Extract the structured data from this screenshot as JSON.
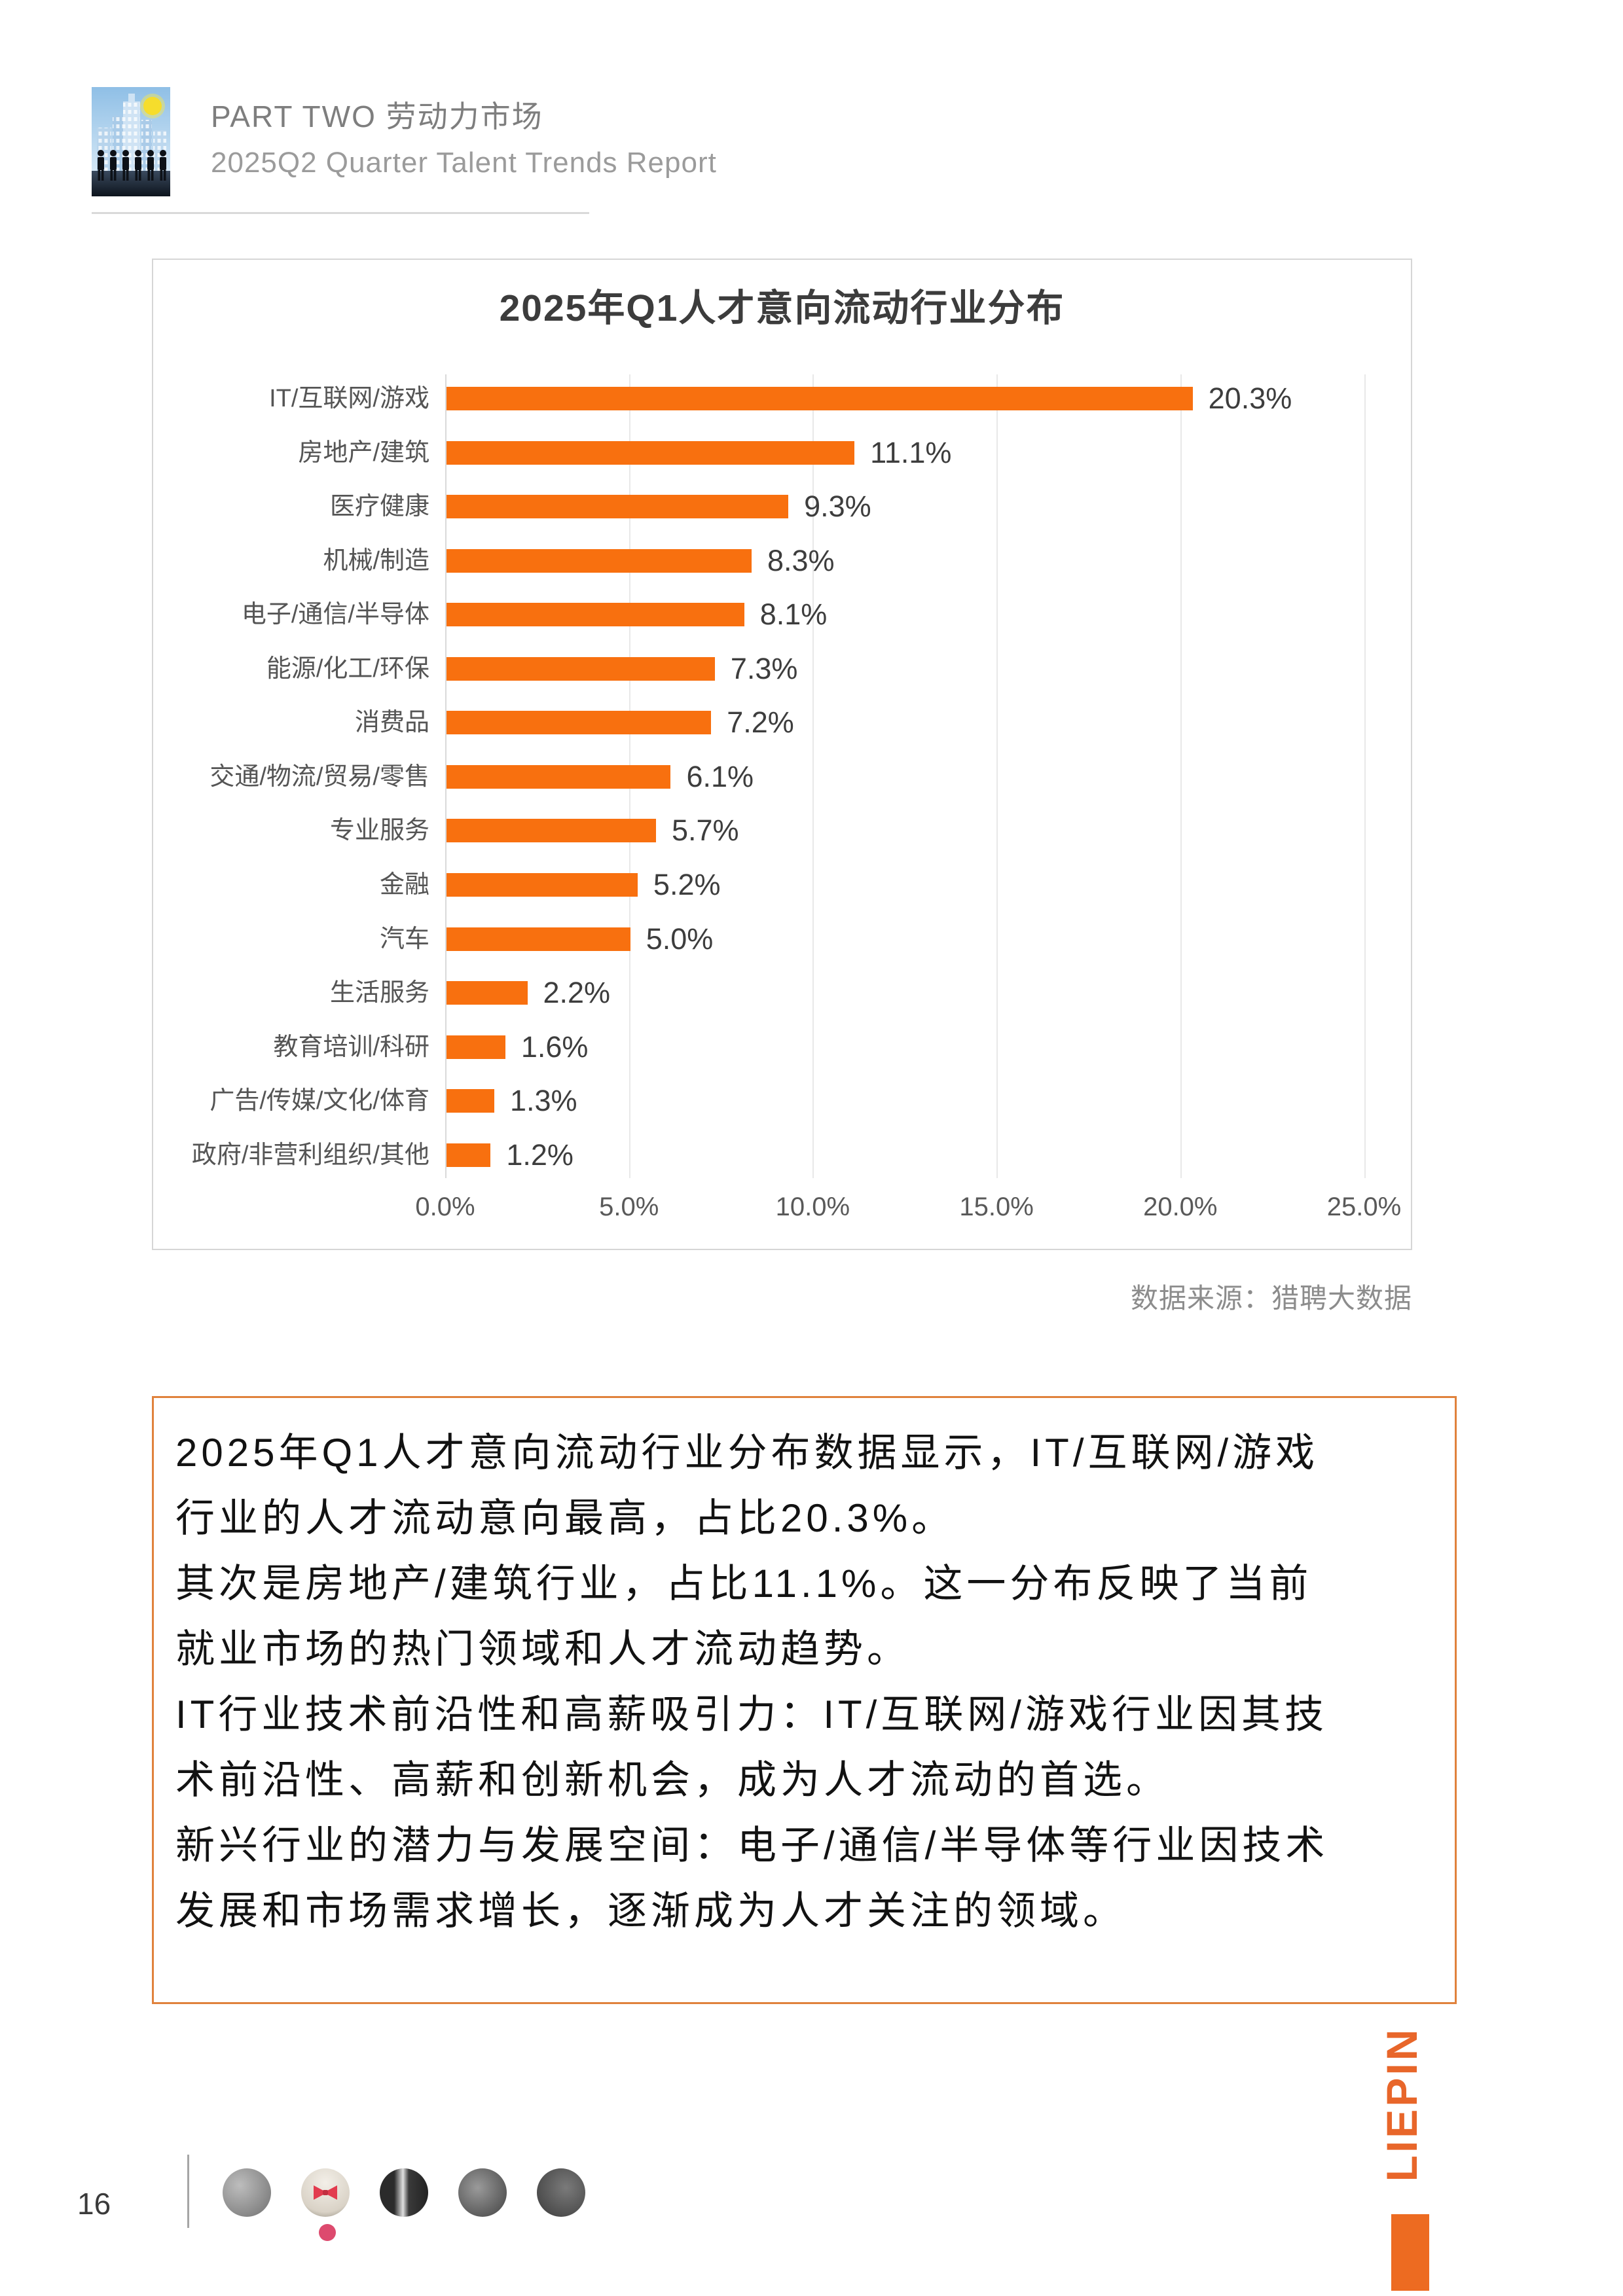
{
  "header": {
    "part_label": "PART TWO 劳动力市场",
    "report_title": "2025Q2 Quarter Talent Trends Report"
  },
  "chart": {
    "title": "2025年Q1人才意向流动行业分布",
    "source_note": "数据来源：猎聘大数据"
  },
  "chart_data": {
    "type": "bar",
    "orientation": "horizontal",
    "title": "2025年Q1人才意向流动行业分布",
    "categories": [
      "IT/互联网/游戏",
      "房地产/建筑",
      "医疗健康",
      "机械/制造",
      "电子/通信/半导体",
      "能源/化工/环保",
      "消费品",
      "交通/物流/贸易/零售",
      "专业服务",
      "金融",
      "汽车",
      "生活服务",
      "教育培训/科研",
      "广告/传媒/文化/体育",
      "政府/非营利组织/其他"
    ],
    "values": [
      20.3,
      11.1,
      9.3,
      8.3,
      8.1,
      7.3,
      7.2,
      6.1,
      5.7,
      5.2,
      5.0,
      2.2,
      1.6,
      1.3,
      1.2
    ],
    "value_labels": [
      "20.3%",
      "11.1%",
      "9.3%",
      "8.3%",
      "8.1%",
      "7.3%",
      "7.2%",
      "6.1%",
      "5.7%",
      "5.2%",
      "5.0%",
      "2.2%",
      "1.6%",
      "1.3%",
      "1.2%"
    ],
    "x_ticks": [
      {
        "value": 0,
        "label": "0.0%"
      },
      {
        "value": 5,
        "label": "5.0%"
      },
      {
        "value": 10,
        "label": "10.0%"
      },
      {
        "value": 15,
        "label": "15.0%"
      },
      {
        "value": 20,
        "label": "20.0%"
      },
      {
        "value": 25,
        "label": "25.0%"
      }
    ],
    "xlim": [
      0,
      25
    ],
    "grid": true,
    "legend_position": "none",
    "bar_color": "#f8700f"
  },
  "summary": {
    "paragraphs": [
      "2025年Q1人才意向流动行业分布数据显示，IT/互联网/游戏\n行业的人才流动意向最高，占比20.3%。",
      "其次是房地产/建筑行业，占比11.1%。这一分布反映了当前\n就业市场的热门领域和人才流动趋势。",
      "IT行业技术前沿性和高薪吸引力：IT/互联网/游戏行业因其技\n术前沿性、高薪和创新机会，成为人才流动的首选。",
      "新兴行业的潜力与发展空间：电子/通信/半导体等行业因技术\n发展和市场需求增长，逐渐成为人才关注的领域。"
    ]
  },
  "footer": {
    "page_number": "16",
    "brand_text": "LIEPIN"
  },
  "colors": {
    "bar_orange": "#f8700f",
    "summary_border_orange": "#e0823c",
    "brand_orange": "#e8662a",
    "grid_gray": "#e8e8e8",
    "text_gray": "#8c8c8c"
  }
}
